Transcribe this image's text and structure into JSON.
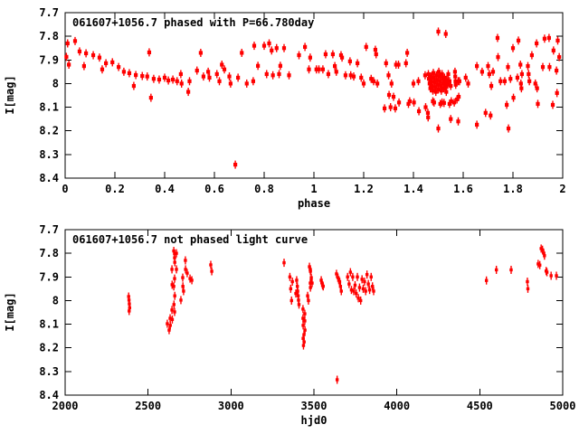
{
  "figure": {
    "background": "#ffffff",
    "foreground": "#000000",
    "point_color": "#ff0000"
  },
  "chart_data": [
    {
      "type": "scatter",
      "panel": "top",
      "title": "061607+1056.7 phased with P=66.780day",
      "xlabel": "phase",
      "ylabel": "I[mag]",
      "xlim": [
        0,
        2
      ],
      "ylim": [
        7.7,
        8.4
      ],
      "y_axis_inverted_magnitudes": true,
      "grid": false,
      "legend": "none",
      "marker": {
        "shape": "filled-square-with-vertical-errorbar",
        "color": "#ff0000",
        "size": 4.2
      },
      "xticks": [
        0,
        0.2,
        0.4,
        0.6,
        0.8,
        1,
        1.2,
        1.4,
        1.6,
        1.8,
        2
      ],
      "xtick_labels": [
        "0",
        "0.2",
        "0.4",
        "0.6",
        "0.8",
        "1",
        "1.2",
        "1.4",
        "1.6",
        "1.8",
        "2"
      ],
      "yticks": [
        7.7,
        7.8,
        7.9,
        8,
        8.1,
        8.2,
        8.3,
        8.4
      ],
      "ytick_labels": [
        "7.7",
        "7.8",
        "7.9",
        "8",
        "8.1",
        "8.2",
        "8.3",
        "8.4"
      ],
      "points": [
        [
          0.005,
          7.887
        ],
        [
          0.01,
          7.83
        ],
        [
          0.015,
          7.92
        ],
        [
          0.04,
          7.82
        ],
        [
          0.058,
          7.864
        ],
        [
          0.076,
          7.926
        ],
        [
          0.084,
          7.872
        ],
        [
          0.113,
          7.88
        ],
        [
          0.138,
          7.89
        ],
        [
          0.149,
          7.94
        ],
        [
          0.164,
          7.914
        ],
        [
          0.19,
          7.91
        ],
        [
          0.215,
          7.93
        ],
        [
          0.236,
          7.95
        ],
        [
          0.258,
          7.956
        ],
        [
          0.276,
          8.01
        ],
        [
          0.284,
          7.964
        ],
        [
          0.31,
          7.968
        ],
        [
          0.33,
          7.97
        ],
        [
          0.338,
          7.868
        ],
        [
          0.345,
          8.06
        ],
        [
          0.356,
          7.98
        ],
        [
          0.378,
          7.983
        ],
        [
          0.4,
          7.975
        ],
        [
          0.415,
          7.987
        ],
        [
          0.433,
          7.983
        ],
        [
          0.45,
          7.99
        ],
        [
          0.465,
          7.96
        ],
        [
          0.468,
          8.0
        ],
        [
          0.495,
          8.035
        ],
        [
          0.5,
          7.99
        ],
        [
          0.53,
          7.945
        ],
        [
          0.545,
          7.87
        ],
        [
          0.556,
          7.97
        ],
        [
          0.575,
          7.95
        ],
        [
          0.58,
          7.975
        ],
        [
          0.61,
          7.96
        ],
        [
          0.62,
          7.99
        ],
        [
          0.63,
          7.92
        ],
        [
          0.64,
          7.94
        ],
        [
          0.66,
          7.97
        ],
        [
          0.665,
          8.0
        ],
        [
          0.684,
          8.343
        ],
        [
          0.695,
          7.975
        ],
        [
          0.71,
          7.87
        ],
        [
          0.73,
          8.0
        ],
        [
          0.756,
          7.99
        ],
        [
          0.76,
          7.84
        ],
        [
          0.775,
          7.925
        ],
        [
          0.8,
          7.84
        ],
        [
          0.81,
          7.96
        ],
        [
          0.82,
          7.83
        ],
        [
          0.83,
          7.86
        ],
        [
          0.835,
          7.965
        ],
        [
          0.85,
          7.85
        ],
        [
          0.86,
          7.96
        ],
        [
          0.865,
          7.925
        ],
        [
          0.88,
          7.85
        ],
        [
          0.9,
          7.965
        ],
        [
          0.94,
          7.88
        ],
        [
          0.964,
          7.845
        ],
        [
          0.98,
          7.94
        ],
        [
          0.985,
          7.89
        ],
        [
          1.01,
          7.94
        ],
        [
          1.02,
          7.94
        ],
        [
          1.036,
          7.94
        ],
        [
          1.047,
          7.876
        ],
        [
          1.058,
          7.96
        ],
        [
          1.076,
          7.876
        ],
        [
          1.084,
          7.926
        ],
        [
          1.09,
          7.95
        ],
        [
          1.109,
          7.88
        ],
        [
          1.113,
          7.89
        ],
        [
          1.127,
          7.965
        ],
        [
          1.145,
          7.906
        ],
        [
          1.148,
          7.965
        ],
        [
          1.16,
          7.97
        ],
        [
          1.175,
          7.914
        ],
        [
          1.19,
          7.975
        ],
        [
          1.2,
          8.0
        ],
        [
          1.21,
          7.845
        ],
        [
          1.23,
          7.98
        ],
        [
          1.24,
          7.99
        ],
        [
          1.247,
          7.857
        ],
        [
          1.25,
          7.876
        ],
        [
          1.255,
          8.0
        ],
        [
          1.284,
          8.105
        ],
        [
          1.29,
          7.914
        ],
        [
          1.3,
          7.965
        ],
        [
          1.302,
          8.048
        ],
        [
          1.308,
          8.1
        ],
        [
          1.312,
          8.0
        ],
        [
          1.32,
          8.056
        ],
        [
          1.327,
          8.105
        ],
        [
          1.33,
          7.92
        ],
        [
          1.34,
          7.92
        ],
        [
          1.342,
          8.08
        ],
        [
          1.37,
          7.914
        ],
        [
          1.375,
          7.87
        ],
        [
          1.38,
          8.086
        ],
        [
          1.385,
          8.075
        ],
        [
          1.4,
          8.0
        ],
        [
          1.402,
          8.08
        ],
        [
          1.42,
          7.99
        ],
        [
          1.422,
          8.117
        ],
        [
          1.447,
          7.965
        ],
        [
          1.449,
          8.1
        ],
        [
          1.458,
          8.124
        ],
        [
          1.459,
          8.143
        ],
        [
          1.46,
          7.96
        ],
        [
          1.462,
          7.98
        ],
        [
          1.465,
          8.0
        ],
        [
          1.468,
          8.02
        ],
        [
          1.47,
          7.97
        ],
        [
          1.472,
          7.99
        ],
        [
          1.475,
          8.01
        ],
        [
          1.478,
          8.03
        ],
        [
          1.48,
          7.955
        ],
        [
          1.482,
          7.975
        ],
        [
          1.485,
          7.995
        ],
        [
          1.488,
          8.015
        ],
        [
          1.49,
          8.035
        ],
        [
          1.492,
          7.965
        ],
        [
          1.495,
          7.985
        ],
        [
          1.498,
          8.005
        ],
        [
          1.5,
          8.025
        ],
        [
          1.502,
          7.95
        ],
        [
          1.505,
          7.97
        ],
        [
          1.508,
          7.99
        ],
        [
          1.51,
          8.01
        ],
        [
          1.512,
          8.03
        ],
        [
          1.515,
          7.96
        ],
        [
          1.518,
          7.98
        ],
        [
          1.52,
          8.0
        ],
        [
          1.522,
          8.02
        ],
        [
          1.525,
          7.975
        ],
        [
          1.528,
          7.995
        ],
        [
          1.53,
          8.015
        ],
        [
          1.532,
          8.035
        ],
        [
          1.535,
          7.985
        ],
        [
          1.538,
          8.005
        ],
        [
          1.54,
          7.96
        ],
        [
          1.545,
          7.99
        ],
        [
          1.55,
          8.01
        ],
        [
          1.5,
          7.78
        ],
        [
          1.53,
          7.79
        ],
        [
          1.478,
          8.075
        ],
        [
          1.483,
          8.08
        ],
        [
          1.5,
          8.19
        ],
        [
          1.508,
          8.086
        ],
        [
          1.515,
          8.08
        ],
        [
          1.523,
          8.082
        ],
        [
          1.545,
          8.086
        ],
        [
          1.552,
          8.075
        ],
        [
          1.55,
          8.15
        ],
        [
          1.564,
          8.08
        ],
        [
          1.567,
          7.95
        ],
        [
          1.568,
          7.97
        ],
        [
          1.569,
          7.99
        ],
        [
          1.57,
          8.005
        ],
        [
          1.575,
          8.067
        ],
        [
          1.58,
          7.99
        ],
        [
          1.582,
          8.056
        ],
        [
          1.58,
          8.16
        ],
        [
          1.585,
          7.99
        ],
        [
          1.61,
          7.975
        ],
        [
          1.62,
          8.0
        ],
        [
          1.655,
          7.926
        ],
        [
          1.655,
          8.174
        ],
        [
          1.676,
          7.95
        ],
        [
          1.69,
          8.124
        ],
        [
          1.7,
          7.926
        ],
        [
          1.705,
          7.96
        ],
        [
          1.71,
          8.135
        ],
        [
          1.713,
          8.01
        ],
        [
          1.72,
          7.95
        ],
        [
          1.738,
          7.807
        ],
        [
          1.74,
          7.888
        ],
        [
          1.75,
          7.99
        ],
        [
          1.767,
          7.99
        ],
        [
          1.775,
          8.09
        ],
        [
          1.78,
          7.93
        ],
        [
          1.782,
          8.19
        ],
        [
          1.79,
          7.98
        ],
        [
          1.8,
          7.85
        ],
        [
          1.802,
          8.06
        ],
        [
          1.818,
          7.975
        ],
        [
          1.822,
          7.818
        ],
        [
          1.83,
          7.92
        ],
        [
          1.832,
          8.0
        ],
        [
          1.834,
          8.02
        ],
        [
          1.836,
          7.96
        ],
        [
          1.86,
          7.926
        ],
        [
          1.863,
          7.96
        ],
        [
          1.866,
          7.99
        ],
        [
          1.876,
          7.88
        ],
        [
          1.89,
          8.0
        ],
        [
          1.895,
          7.83
        ],
        [
          1.897,
          8.02
        ],
        [
          1.9,
          8.086
        ],
        [
          1.92,
          7.93
        ],
        [
          1.927,
          7.81
        ],
        [
          1.945,
          7.807
        ],
        [
          1.947,
          7.93
        ],
        [
          1.96,
          8.09
        ],
        [
          1.963,
          7.86
        ],
        [
          1.975,
          7.945
        ],
        [
          1.977,
          8.04
        ],
        [
          1.98,
          7.818
        ],
        [
          1.986,
          7.888
        ]
      ]
    },
    {
      "type": "scatter",
      "panel": "bottom",
      "title": "061607+1056.7 not phased light curve",
      "xlabel": "hjd0",
      "ylabel": "I[mag]",
      "xlim": [
        2000,
        5000
      ],
      "ylim": [
        7.7,
        8.4
      ],
      "y_axis_inverted_magnitudes": true,
      "grid": false,
      "legend": "none",
      "marker": {
        "shape": "filled-square-with-vertical-errorbar",
        "color": "#ff0000",
        "size": 3.4
      },
      "xticks": [
        2000,
        2500,
        3000,
        3500,
        4000,
        4500,
        5000
      ],
      "xtick_labels": [
        "2000",
        "2500",
        "3000",
        "3500",
        "4000",
        "4500",
        "5000"
      ],
      "yticks": [
        7.7,
        7.8,
        7.9,
        8,
        8.1,
        8.2,
        8.3,
        8.4
      ],
      "ytick_labels": [
        "7.7",
        "7.8",
        "7.9",
        "8",
        "8.1",
        "8.2",
        "8.3",
        "8.4"
      ],
      "points": [
        [
          2383,
          7.983
        ],
        [
          2385,
          7.998
        ],
        [
          2387,
          8.014
        ],
        [
          2389,
          8.03
        ],
        [
          2386,
          8.044
        ],
        [
          2616,
          8.098
        ],
        [
          2627,
          8.125
        ],
        [
          2633,
          8.075
        ],
        [
          2634,
          8.105
        ],
        [
          2644,
          7.868
        ],
        [
          2645,
          7.933
        ],
        [
          2644,
          8.04
        ],
        [
          2646,
          8.08
        ],
        [
          2655,
          7.79
        ],
        [
          2655,
          7.94
        ],
        [
          2656,
          8.017
        ],
        [
          2660,
          7.802
        ],
        [
          2660,
          7.819
        ],
        [
          2661,
          7.838
        ],
        [
          2660,
          7.907
        ],
        [
          2661,
          7.98
        ],
        [
          2660,
          8.048
        ],
        [
          2671,
          7.8
        ],
        [
          2671,
          7.868
        ],
        [
          2698,
          7.998
        ],
        [
          2709,
          7.903
        ],
        [
          2710,
          7.94
        ],
        [
          2714,
          7.96
        ],
        [
          2725,
          7.83
        ],
        [
          2726,
          7.868
        ],
        [
          2736,
          7.884
        ],
        [
          2753,
          7.907
        ],
        [
          2764,
          7.914
        ],
        [
          2878,
          7.849
        ],
        [
          2884,
          7.876
        ],
        [
          3320,
          7.84
        ],
        [
          3355,
          7.9
        ],
        [
          3360,
          7.95
        ],
        [
          3365,
          8.0
        ],
        [
          3370,
          7.92
        ],
        [
          3391,
          7.97
        ],
        [
          3396,
          7.914
        ],
        [
          3400,
          7.94
        ],
        [
          3402,
          7.96
        ],
        [
          3405,
          7.98
        ],
        [
          3407,
          7.998
        ],
        [
          3410,
          8.017
        ],
        [
          3434,
          8.036
        ],
        [
          3434,
          8.075
        ],
        [
          3435,
          8.105
        ],
        [
          3435,
          8.16
        ],
        [
          3437,
          8.19
        ],
        [
          3440,
          8.144
        ],
        [
          3441,
          8.175
        ],
        [
          3445,
          8.056
        ],
        [
          3445,
          8.086
        ],
        [
          3446,
          8.125
        ],
        [
          3462,
          7.98
        ],
        [
          3467,
          8.0
        ],
        [
          3473,
          7.857
        ],
        [
          3478,
          7.868
        ],
        [
          3479,
          7.876
        ],
        [
          3478,
          7.926
        ],
        [
          3479,
          7.945
        ],
        [
          3484,
          7.903
        ],
        [
          3489,
          7.926
        ],
        [
          3544,
          7.914
        ],
        [
          3548,
          7.925
        ],
        [
          3552,
          7.935
        ],
        [
          3556,
          7.94
        ],
        [
          3636,
          7.887
        ],
        [
          3640,
          8.335
        ],
        [
          3645,
          7.903
        ],
        [
          3650,
          7.914
        ],
        [
          3655,
          7.92
        ],
        [
          3660,
          7.94
        ],
        [
          3665,
          7.96
        ],
        [
          3703,
          7.9
        ],
        [
          3712,
          7.93
        ],
        [
          3720,
          7.88
        ],
        [
          3726,
          7.955
        ],
        [
          3734,
          7.9
        ],
        [
          3740,
          7.96
        ],
        [
          3748,
          7.935
        ],
        [
          3755,
          7.97
        ],
        [
          3762,
          7.9
        ],
        [
          3768,
          7.99
        ],
        [
          3775,
          7.945
        ],
        [
          3782,
          8.0
        ],
        [
          3790,
          7.91
        ],
        [
          3797,
          7.95
        ],
        [
          3805,
          7.92
        ],
        [
          3812,
          7.96
        ],
        [
          3820,
          7.89
        ],
        [
          3828,
          7.93
        ],
        [
          3836,
          7.955
        ],
        [
          3845,
          7.9
        ],
        [
          3853,
          7.94
        ],
        [
          3860,
          7.96
        ],
        [
          4540,
          7.915
        ],
        [
          4600,
          7.87
        ],
        [
          4689,
          7.87
        ],
        [
          4787,
          7.92
        ],
        [
          4790,
          7.95
        ],
        [
          4852,
          7.845
        ],
        [
          4862,
          7.85
        ],
        [
          4870,
          7.78
        ],
        [
          4878,
          7.785
        ],
        [
          4886,
          7.8
        ],
        [
          4890,
          7.81
        ],
        [
          4900,
          7.875
        ],
        [
          4905,
          7.88
        ],
        [
          4930,
          7.895
        ],
        [
          4962,
          7.895
        ]
      ]
    }
  ]
}
